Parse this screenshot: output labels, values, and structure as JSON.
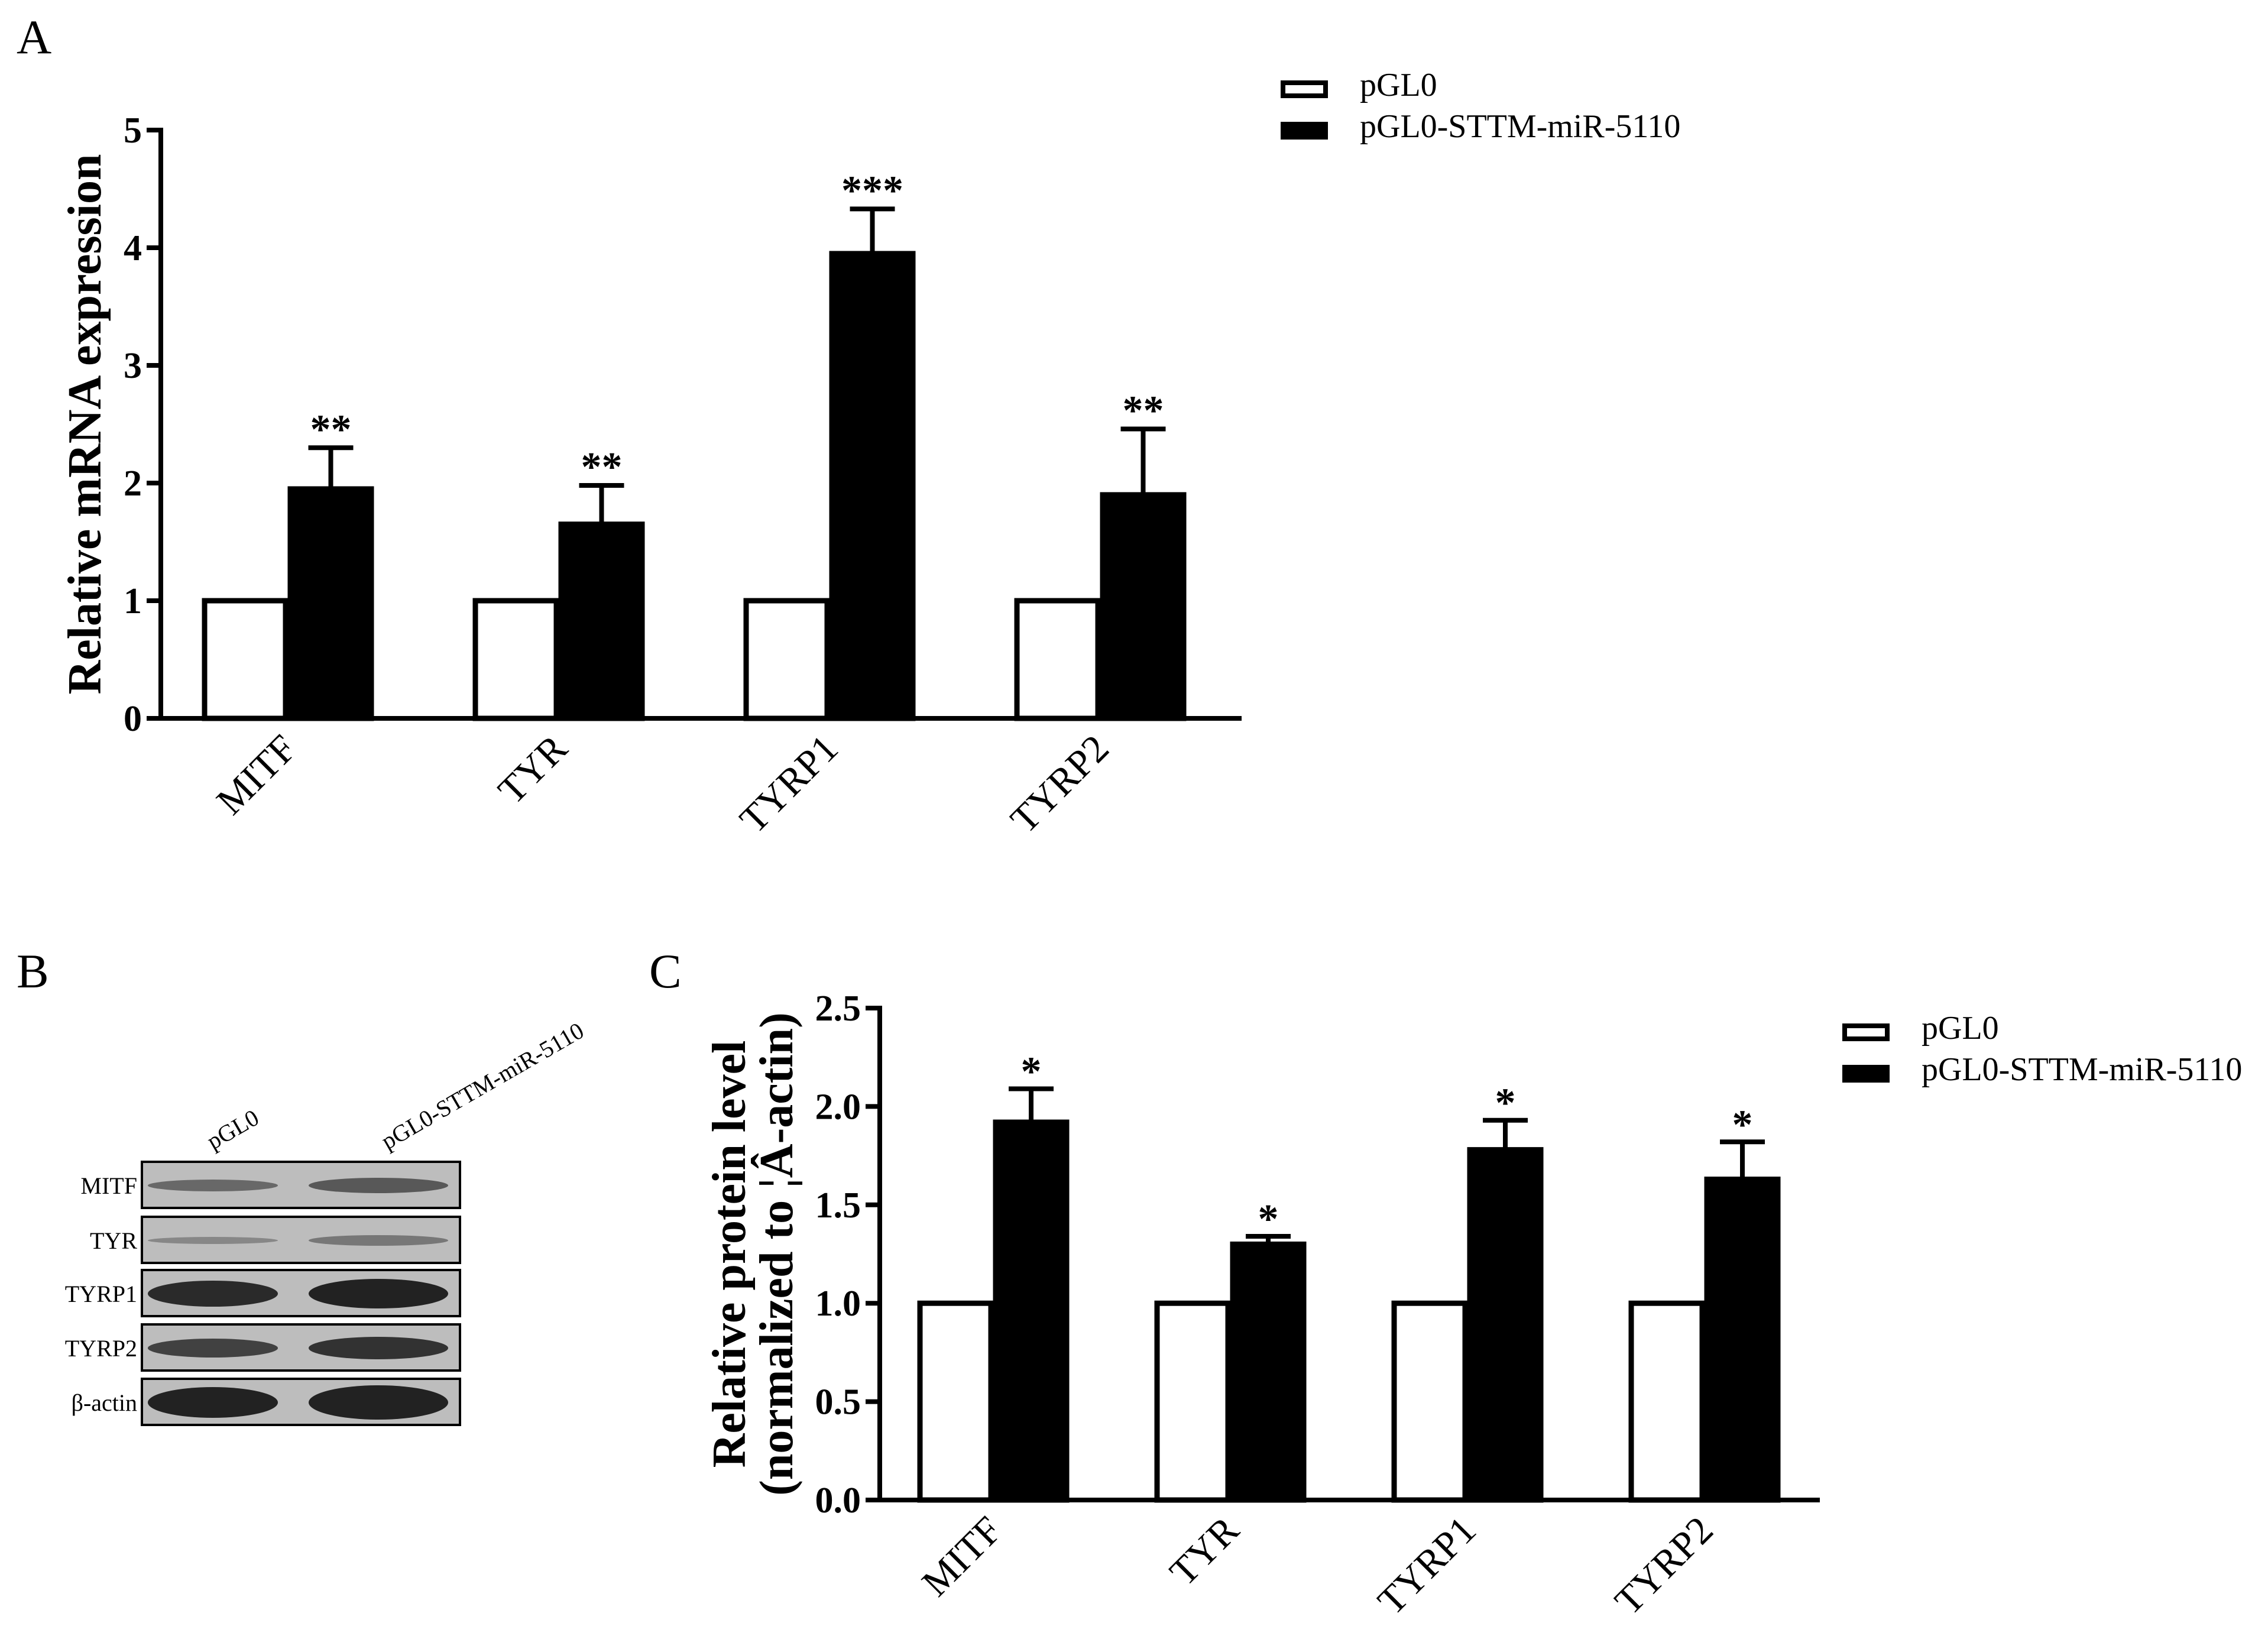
{
  "figure": {
    "colors": {
      "control_fill": "#ffffff",
      "treatment_fill": "#000000",
      "axis": "#000000"
    },
    "panels": {
      "A": {
        "label": "A"
      },
      "B": {
        "label": "B",
        "columns": [
          "pGL0",
          "pGL0-STTM-miR-5110"
        ],
        "rows": [
          "MITF",
          "TYR",
          "TYRP1",
          "TYRP2",
          "β-actin"
        ]
      },
      "C": {
        "label": "C"
      }
    }
  },
  "chart_data": [
    {
      "panel": "A",
      "type": "bar",
      "categories": [
        "MITF",
        "TYR",
        "TYRP1",
        "TYRP2"
      ],
      "series": [
        {
          "name": "pGL0",
          "values": [
            1.0,
            1.0,
            1.0,
            1.0
          ],
          "errors": [
            0,
            0,
            0,
            0
          ]
        },
        {
          "name": "pGL0-STTM-miR-5110",
          "values": [
            1.95,
            1.65,
            3.95,
            1.9
          ],
          "errors": [
            0.35,
            0.33,
            0.38,
            0.56
          ]
        }
      ],
      "significance": [
        "**",
        "**",
        "***",
        "**"
      ],
      "ylabel": "Relative  mRNA expression",
      "xlabel": "",
      "ylim": [
        0,
        5
      ],
      "yticks": [
        "0",
        "1",
        "2",
        "3",
        "4",
        "5"
      ],
      "legend": [
        "pGL0",
        "pGL0-STTM-miR-5110"
      ],
      "legend_position": "top-right"
    },
    {
      "panel": "C",
      "type": "bar",
      "categories": [
        "MITF",
        "TYR",
        "TYRP1",
        "TYRP2"
      ],
      "series": [
        {
          "name": "pGL0",
          "values": [
            1.0,
            1.0,
            1.0,
            1.0
          ],
          "errors": [
            0,
            0,
            0,
            0
          ]
        },
        {
          "name": "pGL0-STTM-miR-5110",
          "values": [
            1.92,
            1.3,
            1.78,
            1.63
          ],
          "errors": [
            0.17,
            0.04,
            0.15,
            0.19
          ]
        }
      ],
      "significance": [
        "*",
        "*",
        "*",
        "*"
      ],
      "ylabel_line1": "Relative protein level",
      "ylabel_line2": "(normalized to ¦Â-actin)",
      "xlabel": "",
      "ylim": [
        0,
        2.5
      ],
      "yticks": [
        "0.0",
        "0.5",
        "1.0",
        "1.5",
        "2.0",
        "2.5"
      ],
      "legend": [
        "pGL0",
        "pGL0-STTM-miR-5110"
      ],
      "legend_position": "top-right"
    }
  ]
}
